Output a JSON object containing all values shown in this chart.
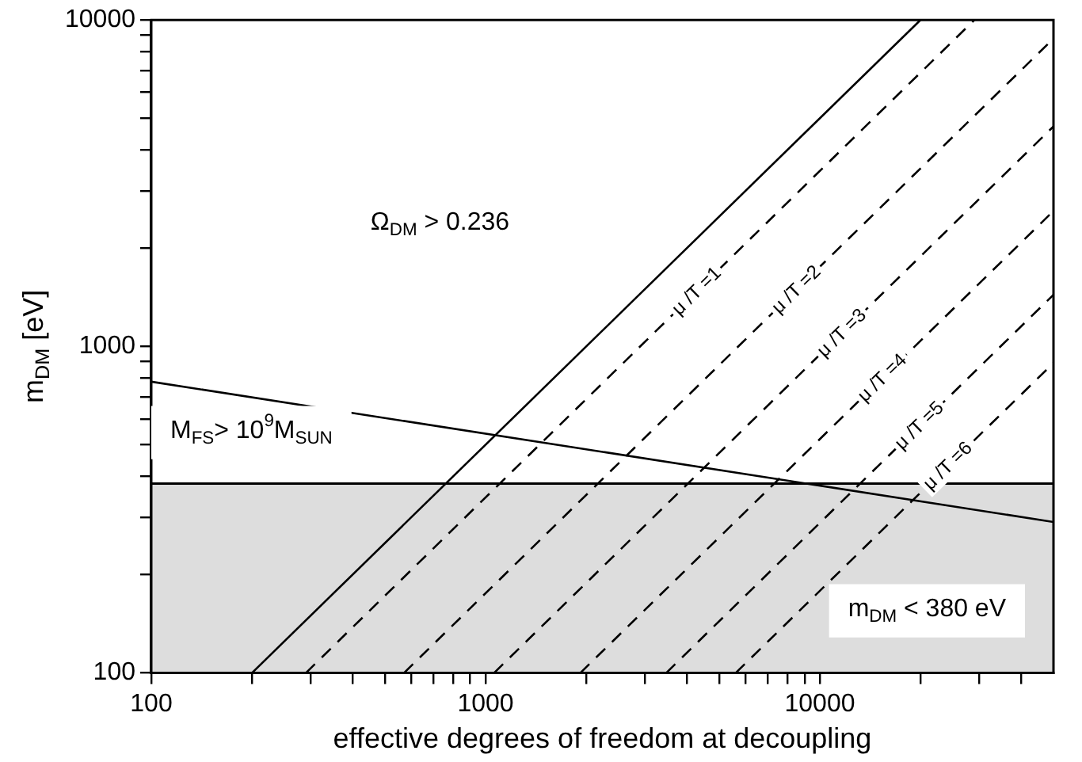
{
  "chart_data": {
    "type": "line",
    "xlabel": "effective degrees of freedom at decoupling",
    "ylabel": "m$_{DM}$ [eV]",
    "log": "xy",
    "grid": false,
    "legend": false,
    "marker": "none",
    "xlim": [
      100,
      50000
    ],
    "ylim": [
      100,
      10000
    ],
    "xticks": [
      100,
      {
        "value": 200,
        "label": null
      },
      {
        "value": 300,
        "label": null
      },
      {
        "value": 400,
        "label": null
      },
      {
        "value": 500,
        "label": null
      },
      {
        "value": 600,
        "label": null
      },
      {
        "value": 700,
        "label": null
      },
      {
        "value": 800,
        "label": null
      },
      {
        "value": 900,
        "label": null
      },
      1000,
      {
        "value": 2000,
        "label": null
      },
      {
        "value": 3000,
        "label": null
      },
      {
        "value": 4000,
        "label": null
      },
      {
        "value": 5000,
        "label": null
      },
      {
        "value": 6000,
        "label": null
      },
      {
        "value": 7000,
        "label": null
      },
      {
        "value": 8000,
        "label": null
      },
      {
        "value": 9000,
        "label": null
      },
      10000,
      {
        "value": 20000,
        "label": null
      },
      {
        "value": 30000,
        "label": null
      },
      {
        "value": 40000,
        "label": null
      }
    ],
    "yticks": [
      100,
      {
        "value": 200,
        "label": null
      },
      {
        "value": 300,
        "label": null
      },
      {
        "value": 400,
        "label": null
      },
      {
        "value": 500,
        "label": null
      },
      {
        "value": 600,
        "label": null
      },
      {
        "value": 700,
        "label": null
      },
      {
        "value": 800,
        "label": null
      },
      {
        "value": 900,
        "label": null
      },
      1000,
      {
        "value": 2000,
        "label": null
      },
      {
        "value": 3000,
        "label": null
      },
      {
        "value": 4000,
        "label": null
      },
      {
        "value": 5000,
        "label": null
      },
      {
        "value": 6000,
        "label": null
      },
      {
        "value": 7000,
        "label": null
      },
      {
        "value": 8000,
        "label": null
      },
      {
        "value": 9000,
        "label": null
      },
      10000
    ],
    "series": [
      {
        "color": "#000000",
        "line_style": "solid",
        "x": [
          200,
          20000
        ],
        "values": [
          100,
          10000
        ]
      },
      {
        "color": "#000000",
        "line_style": "solid",
        "x": [
          100,
          50000
        ],
        "values": [
          780,
          290
        ]
      },
      {
        "name": "μ /T =1",
        "color": "#000000",
        "line_style": "dashed",
        "x": [
          290,
          29000
        ],
        "values": [
          100,
          10000
        ]
      },
      {
        "name": "μ /T =2",
        "color": "#000000",
        "line_style": "dashed",
        "x": [
          570,
          50000
        ],
        "values": [
          100,
          8770
        ]
      },
      {
        "name": "μ /T =3",
        "color": "#000000",
        "line_style": "dashed",
        "x": [
          1060,
          50000
        ],
        "values": [
          100,
          4720
        ]
      },
      {
        "name": "μ /T =4",
        "color": "#000000",
        "line_style": "dashed",
        "x": [
          1920,
          50000
        ],
        "values": [
          100,
          2600
        ]
      },
      {
        "name": "μ /T =5",
        "color": "#000000",
        "line_style": "dashed",
        "x": [
          3470,
          50000
        ],
        "values": [
          100,
          1440
        ]
      },
      {
        "name": "μ /T =6",
        "color": "#000000",
        "line_style": "dashed",
        "x": [
          5600,
          50000
        ],
        "values": [
          100,
          890
        ]
      }
    ],
    "bands": [
      {
        "axis": "y",
        "from": 100,
        "to": 380,
        "label": "m$_{DM}$ < 380 eV",
        "color": "#000000"
      }
    ],
    "ref_lines": [
      {
        "axis": "y",
        "value": 380,
        "color": "#000000",
        "line_style": "solid"
      }
    ],
    "annotations": [
      "Ω$_{DM}$ > 0.236",
      "M$_{FS}$> 10$^{9}$M$_{SUN}$"
    ]
  }
}
